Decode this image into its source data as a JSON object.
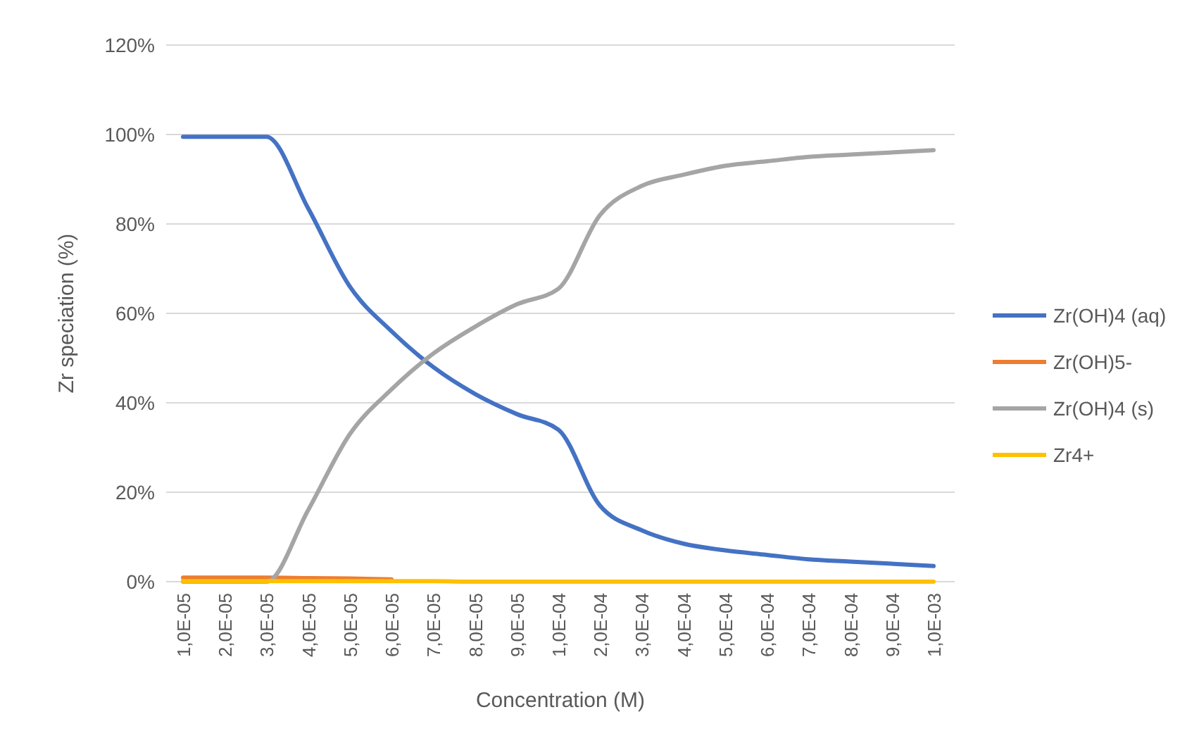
{
  "chart_data": {
    "type": "line",
    "xlabel": "Concentration (M)",
    "ylabel": "Zr speciation (%)",
    "categories": [
      "1,0E-05",
      "2,0E-05",
      "3,0E-05",
      "4,0E-05",
      "5,0E-05",
      "6,0E-05",
      "7,0E-05",
      "8,0E-05",
      "9,0E-05",
      "1,0E-04",
      "2,0E-04",
      "3,0E-04",
      "4,0E-04",
      "5,0E-04",
      "6,0E-04",
      "7,0E-04",
      "8,0E-04",
      "9,0E-04",
      "1,0E-03"
    ],
    "series": [
      {
        "name": "Zr(OH)4 (aq)",
        "color": "#4472c4",
        "values": [
          99.5,
          99.5,
          99.5,
          83.5,
          66,
          56,
          48,
          42,
          37.5,
          34,
          17,
          11.5,
          8.5,
          7,
          6,
          5,
          4.5,
          4,
          3.5
        ]
      },
      {
        "name": "Zr(OH)5-",
        "color": "#ed7d31",
        "values": [
          0.9,
          0.9,
          0.9,
          0.8,
          0.7,
          0.5,
          null,
          null,
          null,
          null,
          null,
          null,
          null,
          null,
          null,
          null,
          null,
          null,
          null
        ]
      },
      {
        "name": "Zr(OH)4 (s)",
        "color": "#a5a5a5",
        "values": [
          0,
          0,
          0,
          16,
          33,
          43,
          51,
          57,
          62,
          65.5,
          82,
          88.5,
          91,
          93,
          94,
          95,
          95.5,
          96,
          96.5
        ]
      },
      {
        "name": "Zr4+",
        "color": "#ffc000",
        "values": [
          0.1,
          0.1,
          0.1,
          0.1,
          0.1,
          0.1,
          0.1,
          0,
          0,
          0,
          0,
          0,
          0,
          0,
          0,
          0,
          0,
          0,
          0
        ]
      }
    ],
    "ylim": [
      0,
      120
    ],
    "yticks": [
      {
        "value": 0,
        "label": "0%"
      },
      {
        "value": 20,
        "label": "20%"
      },
      {
        "value": 40,
        "label": "40%"
      },
      {
        "value": 60,
        "label": "60%"
      },
      {
        "value": 80,
        "label": "80%"
      },
      {
        "value": 100,
        "label": "100%"
      },
      {
        "value": 120,
        "label": "120%"
      }
    ],
    "grid": "y",
    "legend": "right",
    "marker": "none",
    "line_style": "solid"
  }
}
